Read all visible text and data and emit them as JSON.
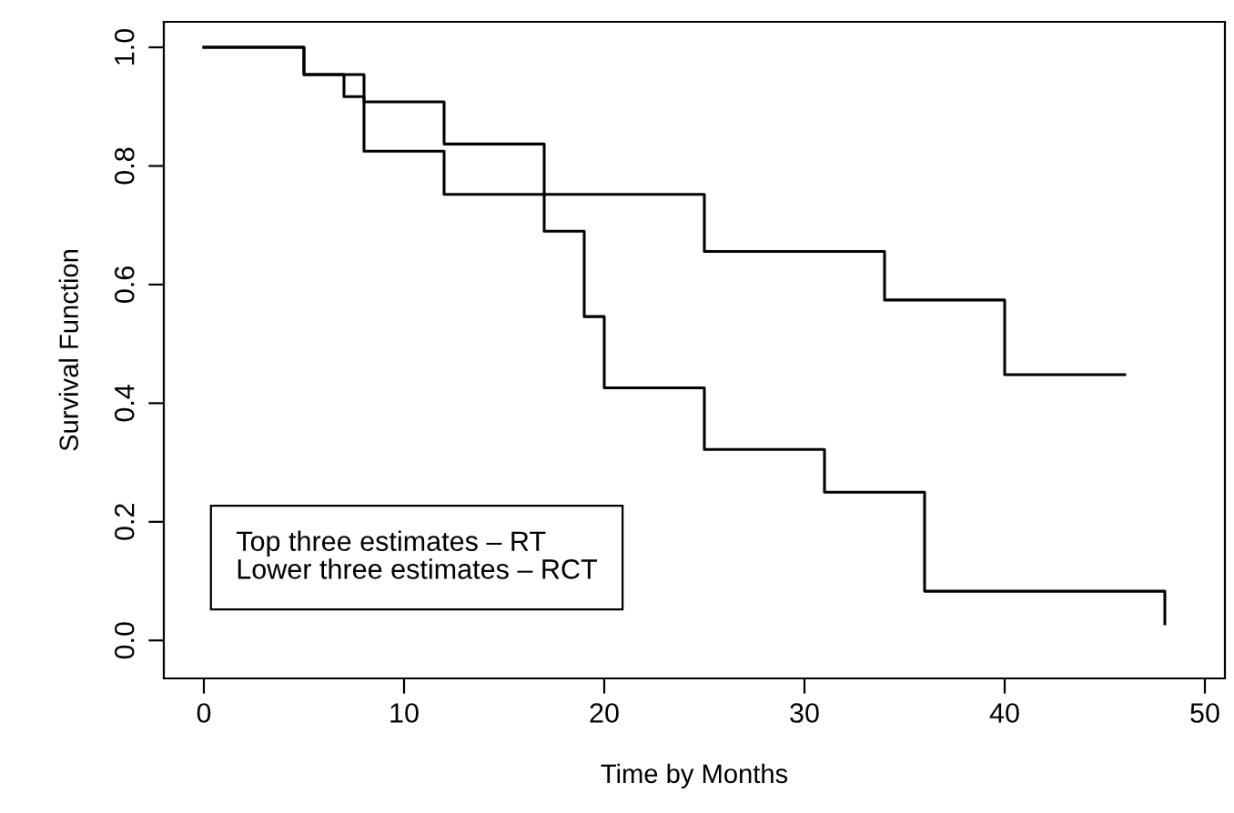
{
  "chart_data": {
    "type": "step",
    "xlabel": "Time by Months",
    "ylabel": "Survival Function",
    "series": [
      {
        "color": "#000000",
        "x": [
          0,
          5,
          8,
          12,
          17,
          25,
          34,
          40,
          46
        ],
        "values": [
          1.0,
          0.954,
          0.908,
          0.837,
          0.752,
          0.656,
          0.574,
          0.448,
          0.448
        ]
      },
      {
        "color": "#000000",
        "x": [
          0,
          5,
          7,
          8,
          12,
          17,
          19,
          20,
          25,
          31,
          36,
          48,
          48
        ],
        "values": [
          1.0,
          0.954,
          0.917,
          0.825,
          0.752,
          0.69,
          0.546,
          0.426,
          0.322,
          0.25,
          0.083,
          0.083,
          0.028
        ]
      }
    ],
    "annotations": [
      "Top three estimates – RT",
      "Lower three estimates – RCT"
    ],
    "xlim": [
      -2,
      51
    ],
    "xticks": [
      0,
      10,
      20,
      30,
      40,
      50
    ],
    "ylim": [
      -0.064,
      1.043
    ],
    "yticks": [
      {
        "value": 0,
        "label": "0.0"
      },
      {
        "value": 0.2,
        "label": "0.2"
      },
      {
        "value": 0.4,
        "label": "0.4"
      },
      {
        "value": 0.6,
        "label": "0.6"
      },
      {
        "value": 0.8,
        "label": "0.8"
      },
      {
        "value": 1,
        "label": "1.0"
      }
    ],
    "grid": false,
    "legend": false,
    "line_style": "solid"
  }
}
